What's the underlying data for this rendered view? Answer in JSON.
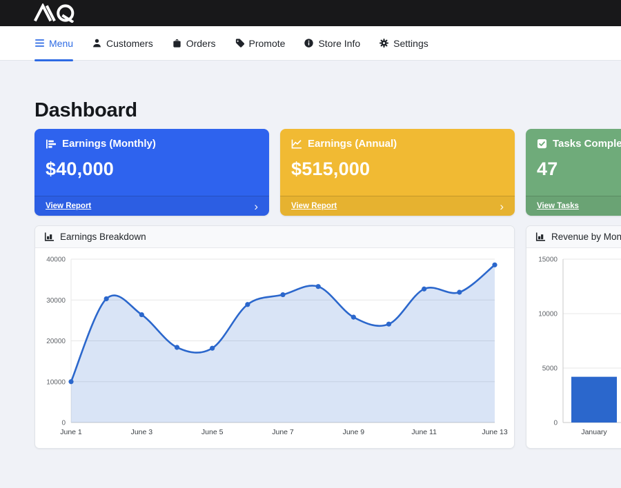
{
  "brand": {
    "logo_text": "MQ"
  },
  "nav": {
    "items": [
      {
        "label": "Menu",
        "active": true
      },
      {
        "label": "Customers",
        "active": false
      },
      {
        "label": "Orders",
        "active": false
      },
      {
        "label": "Promote",
        "active": false
      },
      {
        "label": "Store Info",
        "active": false
      },
      {
        "label": "Settings",
        "active": false
      }
    ]
  },
  "page": {
    "title": "Dashboard"
  },
  "ui": {
    "chevron": "›",
    "accent_blue": "#2e6be4"
  },
  "stat_cards": [
    {
      "title": "Earnings (Monthly)",
      "value": "$40,000",
      "link": "View Report",
      "color": "#2e63ee",
      "icon": "bar-chart-steps-icon"
    },
    {
      "title": "Earnings (Annual)",
      "value": "$515,000",
      "link": "View Report",
      "color": "#f1ba33",
      "icon": "line-chart-icon"
    },
    {
      "title": "Tasks Completed",
      "value": "47",
      "link": "View Tasks",
      "color": "#6fab7a",
      "icon": "check-square-icon"
    }
  ],
  "chart_data": [
    {
      "type": "area",
      "title": "Earnings Breakdown",
      "x": [
        "June 1",
        "June 2",
        "June 3",
        "June 4",
        "June 5",
        "June 6",
        "June 7",
        "June 8",
        "June 9",
        "June 10",
        "June 11",
        "June 12",
        "June 13"
      ],
      "values": [
        10000,
        30300,
        26400,
        18400,
        18200,
        28900,
        31300,
        33300,
        25800,
        24100,
        32700,
        31900,
        38600
      ],
      "ylim": [
        0,
        40000
      ],
      "yticks": [
        0,
        10000,
        20000,
        30000,
        40000
      ],
      "xtick_every": 2,
      "line_color": "#2b67cc",
      "point_color": "#2b67cc",
      "fill_color": "rgba(43,103,204,0.18)",
      "grid": true,
      "legend": "none"
    },
    {
      "type": "bar",
      "title": "Revenue by Month",
      "categories": [
        "January"
      ],
      "values": [
        4200
      ],
      "ylim": [
        0,
        15000
      ],
      "yticks": [
        0,
        5000,
        10000,
        15000
      ],
      "bar_color": "#2b67cc",
      "grid": true,
      "legend": "none"
    }
  ]
}
